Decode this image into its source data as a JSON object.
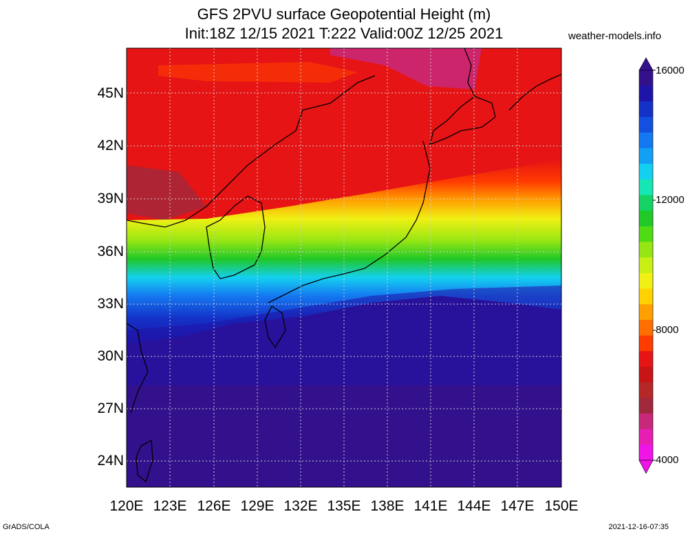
{
  "header": {
    "title_line1": "GFS 2PVU surface Geopotential Height (m)",
    "title_line2": "Init:18Z 12/15 2021 T:222 Valid:00Z 12/25 2021",
    "source": "weather-models.info"
  },
  "footer": {
    "software": "GrADS/COLA",
    "generated": "2021-12-16-07:35"
  },
  "axes": {
    "lat_labels": [
      "45N",
      "42N",
      "39N",
      "36N",
      "33N",
      "30N",
      "27N",
      "24N"
    ],
    "lon_labels": [
      "120E",
      "123E",
      "126E",
      "129E",
      "132E",
      "135E",
      "138E",
      "141E",
      "144E",
      "147E",
      "150E"
    ]
  },
  "colorbar": {
    "labels": [
      "16000",
      "12000",
      "8000",
      "4000"
    ],
    "colors_top_to_bottom": [
      "#33118c",
      "#1f14a8",
      "#1432c8",
      "#1450e0",
      "#1478f0",
      "#12a0f5",
      "#14d0f0",
      "#14e6b4",
      "#14d264",
      "#20c828",
      "#50dc14",
      "#96e614",
      "#c8f014",
      "#f0f014",
      "#ffd200",
      "#ffa000",
      "#ff6e00",
      "#ff3c00",
      "#e61414",
      "#c81414",
      "#b42828",
      "#a0283c",
      "#c8287a",
      "#e61eb4",
      "#f014e6"
    ]
  },
  "map": {
    "region": "Japan / East Asia",
    "lon_range": [
      120,
      150
    ],
    "lat_range": [
      22.5,
      47.5
    ],
    "field_colors": {
      "deep_purple": "#33118c",
      "dark_blue": "#1f14a8",
      "blue": "#1450e0",
      "cyan": "#14d0f0",
      "green": "#50dc14",
      "yellow": "#f0f014",
      "orange": "#ffa000",
      "red": "#e61414",
      "magenta": "#c8287a"
    }
  }
}
